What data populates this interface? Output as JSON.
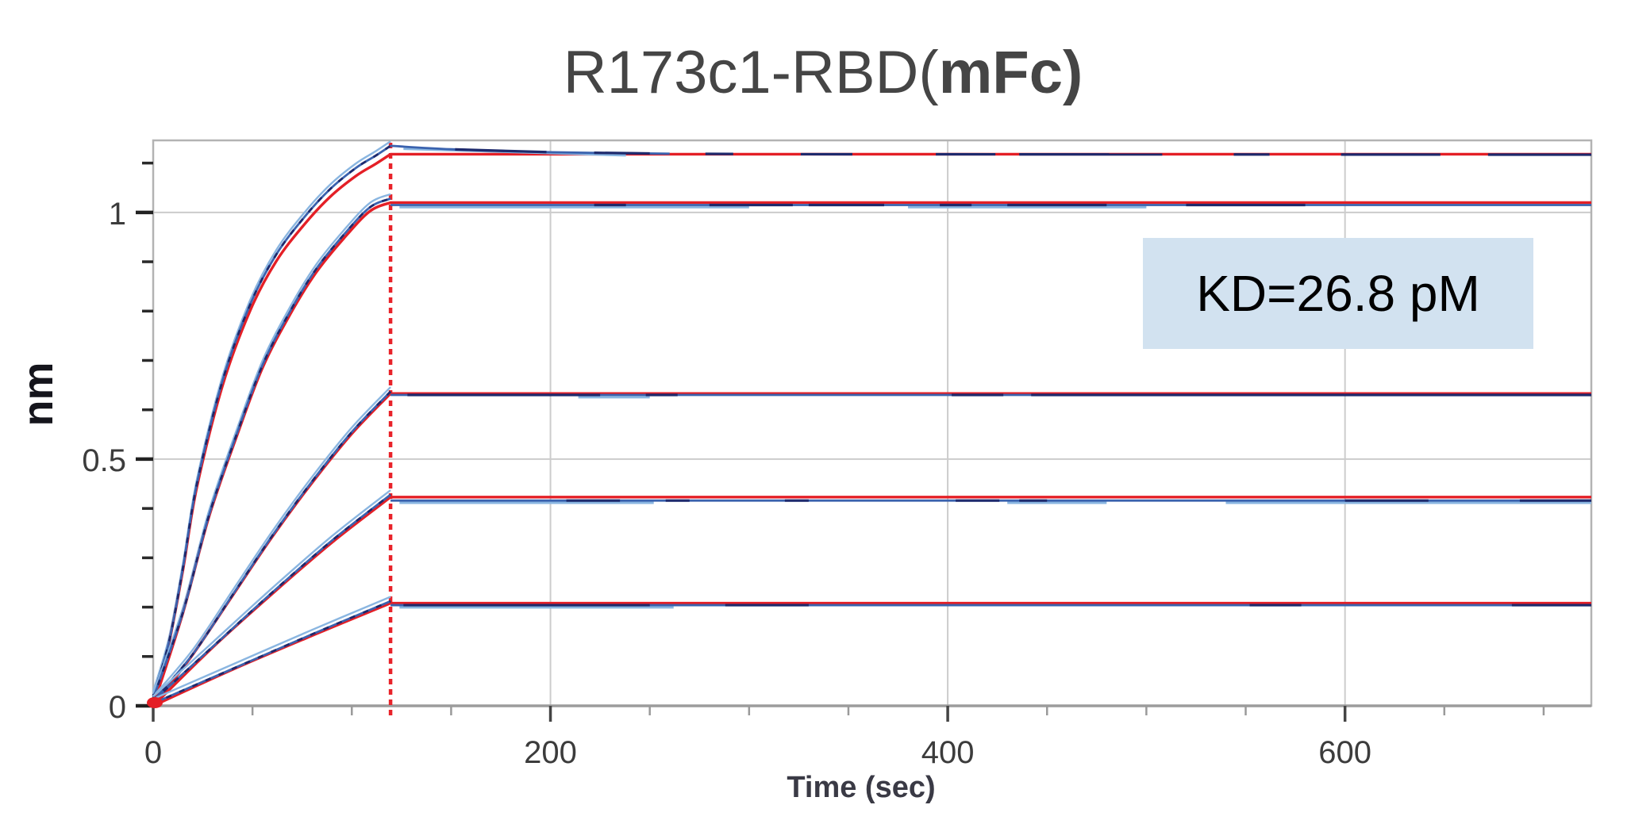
{
  "header": {
    "title": "R173c1-RBD(mFc)",
    "title_regular": "R173c1-RBD(",
    "title_bold": "mFc)"
  },
  "colors": {
    "fit_red": "#e41f26",
    "data_blue": "#3a62ae",
    "data_navy": "#1e2a6d",
    "data_lightblue": "#8ab6e1",
    "grid": "#cccccc",
    "frame": "#b3b3b3",
    "axis_line": "#9c9c9c",
    "tick_major": "#222222",
    "tick_minor": "#555555",
    "tick_label": "#3c3c3c",
    "dashed_line": "#e8232a",
    "kd_bg": "#d2e2f0",
    "kd_text": "#000000",
    "title_text": "#454545"
  },
  "chart_data": {
    "type": "line",
    "title": "R173c1-RBD(mFc)",
    "subtitle": "",
    "xlabel": "Time (sec)",
    "ylabel": "nm",
    "annotation": "KD=26.8 pM",
    "xlim": [
      0,
      724
    ],
    "ylim": [
      0,
      1.146
    ],
    "x_major_ticks": [
      0,
      200,
      400,
      600
    ],
    "x_minor_ticks": [
      50,
      100,
      150,
      250,
      300,
      350,
      450,
      500,
      550,
      650,
      700
    ],
    "y_major_ticks": [
      0,
      0.5,
      1
    ],
    "y_tick_labels": [
      "0",
      "0.5",
      "1"
    ],
    "y_minor_ticks": [
      0.1,
      0.2,
      0.3,
      0.4,
      0.6,
      0.7,
      0.8,
      0.9,
      1.1
    ],
    "grid": {
      "vertical_at": [
        200,
        400,
        600
      ],
      "horizontal_at": [
        0.5,
        1.0
      ]
    },
    "legend_position": "none",
    "association_end_sec": 119.5,
    "series": [
      {
        "name": "trace-1-highest-conc",
        "association": [
          [
            0,
            0.02
          ],
          [
            8,
            0.13
          ],
          [
            15,
            0.28
          ],
          [
            22,
            0.45
          ],
          [
            35,
            0.66
          ],
          [
            49,
            0.815
          ],
          [
            62,
            0.915
          ],
          [
            76,
            0.99
          ],
          [
            89,
            1.047
          ],
          [
            102,
            1.09
          ],
          [
            112,
            1.115
          ],
          [
            119.5,
            1.135
          ]
        ],
        "peak": 1.135,
        "plateau_fit": 1.118,
        "data_offset": 0,
        "blue_dissoc_end": 260,
        "dissociation_data": [
          [
            119.5,
            1.135
          ],
          [
            150,
            1.128
          ],
          [
            200,
            1.122
          ],
          [
            260,
            1.119
          ],
          [
            320,
            1.118
          ],
          [
            724,
            1.117
          ]
        ],
        "navy_segments": [
          [
            152,
            198
          ],
          [
            222,
            250
          ],
          [
            278,
            292
          ],
          [
            326,
            352
          ],
          [
            394,
            424
          ],
          [
            436,
            508
          ],
          [
            544,
            562
          ],
          [
            598,
            648
          ],
          [
            672,
            724
          ]
        ],
        "lightblue_segments": [
          [
            126,
            238
          ]
        ]
      },
      {
        "name": "trace-2",
        "association": [
          [
            0,
            0.015
          ],
          [
            15,
            0.19
          ],
          [
            28,
            0.385
          ],
          [
            42,
            0.55
          ],
          [
            55,
            0.69
          ],
          [
            69,
            0.8
          ],
          [
            82,
            0.885
          ],
          [
            96,
            0.955
          ],
          [
            109,
            1.01
          ],
          [
            119.5,
            1.028
          ]
        ],
        "peak": 1.028,
        "plateau_fit": 1.02,
        "data_offset": -0.005,
        "navy_segments": [
          [
            222,
            238
          ],
          [
            280,
            322
          ],
          [
            330,
            368
          ],
          [
            396,
            412
          ],
          [
            430,
            480
          ],
          [
            520,
            580
          ]
        ],
        "lightblue_segments": [
          [
            124,
            300
          ],
          [
            380,
            500
          ]
        ]
      },
      {
        "name": "trace-3",
        "association": [
          [
            0,
            0.01
          ],
          [
            20,
            0.105
          ],
          [
            40,
            0.225
          ],
          [
            60,
            0.345
          ],
          [
            80,
            0.455
          ],
          [
            100,
            0.555
          ],
          [
            119.5,
            0.637
          ]
        ],
        "peak": 0.637,
        "plateau_fit": 0.633,
        "data_offset": -0.003,
        "navy_segments": [
          [
            128,
            225
          ],
          [
            248,
            264
          ],
          [
            402,
            428
          ],
          [
            442,
            724
          ]
        ],
        "lightblue_segments": [
          [
            214,
            250
          ]
        ]
      },
      {
        "name": "trace-4",
        "association": [
          [
            0,
            0.01
          ],
          [
            30,
            0.12
          ],
          [
            60,
            0.23
          ],
          [
            90,
            0.335
          ],
          [
            119.5,
            0.428
          ]
        ],
        "peak": 0.428,
        "plateau_fit": 0.423,
        "data_offset": -0.007,
        "navy_segments": [
          [
            208,
            235
          ],
          [
            258,
            270
          ],
          [
            318,
            330
          ],
          [
            404,
            426
          ],
          [
            436,
            450
          ],
          [
            600,
            642
          ],
          [
            688,
            724
          ]
        ],
        "lightblue_segments": [
          [
            124,
            252
          ],
          [
            430,
            480
          ],
          [
            540,
            724
          ]
        ]
      },
      {
        "name": "trace-5-lowest-conc",
        "association": [
          [
            0,
            0.005
          ],
          [
            40,
            0.075
          ],
          [
            80,
            0.145
          ],
          [
            119.5,
            0.212
          ]
        ],
        "peak": 0.212,
        "plateau_fit": 0.208,
        "data_offset": -0.004,
        "navy_segments": [
          [
            126,
            250
          ],
          [
            288,
            330
          ],
          [
            552,
            578
          ],
          [
            684,
            724
          ]
        ],
        "lightblue_segments": [
          [
            124,
            262
          ]
        ]
      }
    ]
  }
}
